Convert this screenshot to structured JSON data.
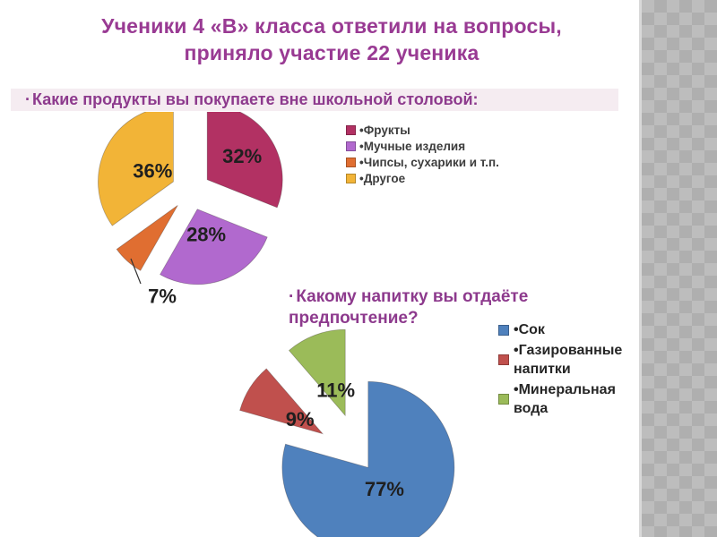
{
  "slide": {
    "title_line1": "Ученики 4 «В» класса ответили на вопросы,",
    "title_line2": "приняло участие 22 ученика"
  },
  "questions": [
    {
      "bullet": "·",
      "text": "Какие продукты вы покупаете вне школьной столовой:"
    },
    {
      "bullet": "·",
      "text_line1": "Какому напитку вы отдаёте",
      "text_line2": "предпочтение?"
    }
  ],
  "legend_bullet": "•",
  "chart_data": [
    {
      "type": "pie",
      "title": "Какие продукты вы покупаете вне школьной столовой:",
      "exploded": true,
      "unit": "%",
      "legend_position": "right",
      "categories": [
        "Фрукты",
        "Мучные изделия",
        "Чипсы, сухарики и т.п.",
        "Другое"
      ],
      "values": [
        32,
        28,
        7,
        36
      ],
      "labels_shown": [
        "32%",
        "28%",
        "7%",
        "36%"
      ],
      "colors": [
        "#b23163",
        "#b169ce",
        "#e06e31",
        "#f2b437"
      ]
    },
    {
      "type": "pie",
      "title": "Какому напитку вы отдаёте предпочтение?",
      "exploded": true,
      "unit": "%",
      "legend_position": "right",
      "categories": [
        "Сок",
        "Газированные напитки",
        "Минеральная вода"
      ],
      "values": [
        77,
        9,
        11
      ],
      "labels_shown": [
        "77%",
        "9%",
        "11%"
      ],
      "colors": [
        "#4f81bd",
        "#c0504d",
        "#9bbb59"
      ]
    }
  ]
}
